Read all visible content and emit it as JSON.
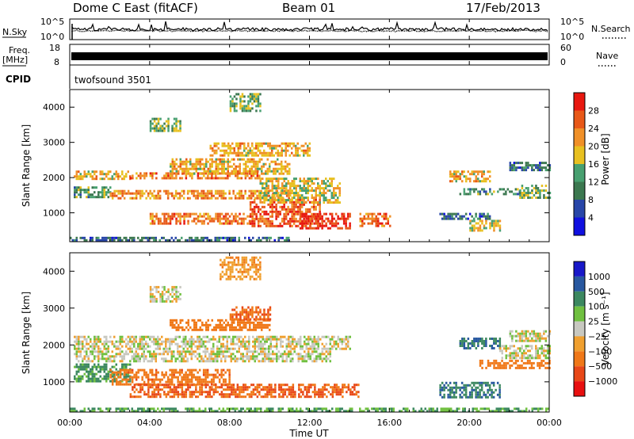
{
  "header": {
    "station": "Dome C East (fitACF)",
    "beam": "Beam 01",
    "date": "17/Feb/2013"
  },
  "top_panels": {
    "nsky_label": "N.Sky",
    "nsearch_label": "N.Search",
    "noise_ticks": [
      "10^5",
      "10^0"
    ],
    "freq_label": "Freq.",
    "freq_unit": "[MHz]",
    "freq_ticks": [
      "18",
      "8"
    ],
    "nave_label": "Nave",
    "nave_ticks": [
      "60",
      "0"
    ],
    "cpid_label": "CPID",
    "cpid_value": "twofsound 3501"
  },
  "x_axis": {
    "label": "Time UT",
    "ticks": [
      "00:00",
      "04:00",
      "08:00",
      "12:00",
      "16:00",
      "20:00",
      "00:00"
    ]
  },
  "colors": {
    "power": [
      "#1010e0",
      "#2846a8",
      "#3c7850",
      "#48a070",
      "#e8c020",
      "#f09028",
      "#e85818",
      "#e81810"
    ],
    "velocity": [
      "#1818c8",
      "#2858a0",
      "#3c8860",
      "#70c040",
      "#c8c8c0",
      "#f0a030",
      "#f07818",
      "#e84818",
      "#e81010"
    ]
  },
  "chart_data": [
    {
      "type": "heatmap",
      "title": "Power",
      "ylabel": "Slant Range [km]",
      "xlabel": "",
      "xlim": [
        0,
        24
      ],
      "ylim": [
        180,
        4500
      ],
      "y_ticks": [
        1000,
        2000,
        3000,
        4000
      ],
      "colorbar": {
        "label": "Power [dB]",
        "ticks": [
          4,
          8,
          12,
          16,
          20,
          24,
          28
        ],
        "range": [
          0,
          32
        ]
      },
      "bands": [
        {
          "t0": 0.2,
          "t1": 3.0,
          "r0": 1950,
          "r1": 2200,
          "value": 20
        },
        {
          "t0": 0.2,
          "t1": 2.0,
          "r0": 1450,
          "r1": 1750,
          "value": 12
        },
        {
          "t0": 2.0,
          "t1": 11.0,
          "r0": 1400,
          "r1": 1650,
          "value": 22
        },
        {
          "t0": 3.0,
          "t1": 9.5,
          "r0": 1950,
          "r1": 2150,
          "value": 24
        },
        {
          "t0": 5.0,
          "t1": 11.0,
          "r0": 2100,
          "r1": 2550,
          "value": 20
        },
        {
          "t0": 4.0,
          "t1": 9.0,
          "r0": 700,
          "r1": 1000,
          "value": 24
        },
        {
          "t0": 9.0,
          "t1": 12.5,
          "r0": 600,
          "r1": 1400,
          "value": 26
        },
        {
          "t0": 11.5,
          "t1": 14.0,
          "r0": 550,
          "r1": 1000,
          "value": 29
        },
        {
          "t0": 9.5,
          "t1": 13.5,
          "r0": 1300,
          "r1": 2000,
          "value": 18
        },
        {
          "t0": 7.0,
          "t1": 12.0,
          "r0": 2600,
          "r1": 3000,
          "value": 20
        },
        {
          "t0": 14.5,
          "t1": 16.0,
          "r0": 600,
          "r1": 1000,
          "value": 24
        },
        {
          "t0": 0.0,
          "t1": 11.0,
          "r0": 200,
          "r1": 320,
          "value": 8
        },
        {
          "t0": 18.5,
          "t1": 21.0,
          "r0": 800,
          "r1": 1000,
          "value": 8
        },
        {
          "t0": 20.0,
          "t1": 21.5,
          "r0": 500,
          "r1": 800,
          "value": 18
        },
        {
          "t0": 19.5,
          "t1": 22.5,
          "r0": 1500,
          "r1": 1700,
          "value": 12
        },
        {
          "t0": 19.0,
          "t1": 21.0,
          "r0": 1900,
          "r1": 2200,
          "value": 20
        },
        {
          "t0": 22.0,
          "t1": 24.0,
          "r0": 2200,
          "r1": 2450,
          "value": 8
        },
        {
          "t0": 22.5,
          "t1": 24.0,
          "r0": 1400,
          "r1": 1800,
          "value": 14
        },
        {
          "t0": 8.0,
          "t1": 9.5,
          "r0": 3900,
          "r1": 4400,
          "value": 14
        },
        {
          "t0": 4.0,
          "t1": 5.5,
          "r0": 3300,
          "r1": 3700,
          "value": 14
        }
      ]
    },
    {
      "type": "heatmap",
      "title": "Velocity",
      "ylabel": "Slant Range [km]",
      "xlabel": "Time UT",
      "xlim": [
        0,
        24
      ],
      "ylim": [
        180,
        4500
      ],
      "y_ticks": [
        1000,
        2000,
        3000,
        4000
      ],
      "colorbar": {
        "label": "Velocity [m s⁻¹]",
        "ticks": [
          "1000",
          "500",
          "100",
          "25",
          "−25",
          "−100",
          "−500",
          "−1000"
        ]
      },
      "bands": [
        {
          "t0": 0.2,
          "t1": 14.0,
          "r0": 1900,
          "r1": 2250,
          "value": 0
        },
        {
          "t0": 0.2,
          "t1": 13.0,
          "r0": 1550,
          "r1": 1850,
          "value": 0
        },
        {
          "t0": 0.2,
          "t1": 3.0,
          "r0": 1000,
          "r1": 1500,
          "value": 100
        },
        {
          "t0": 2.0,
          "t1": 8.0,
          "r0": 900,
          "r1": 1350,
          "value": -200
        },
        {
          "t0": 3.0,
          "t1": 14.5,
          "r0": 600,
          "r1": 950,
          "value": -300
        },
        {
          "t0": 0.0,
          "t1": 24.0,
          "r0": 200,
          "r1": 300,
          "value": 60
        },
        {
          "t0": 5.0,
          "t1": 10.0,
          "r0": 2400,
          "r1": 2700,
          "value": -150
        },
        {
          "t0": 8.0,
          "t1": 10.0,
          "r0": 2700,
          "r1": 3050,
          "value": -300
        },
        {
          "t0": 18.5,
          "t1": 21.5,
          "r0": 600,
          "r1": 1000,
          "value": 250
        },
        {
          "t0": 19.5,
          "t1": 21.5,
          "r0": 1900,
          "r1": 2200,
          "value": 250
        },
        {
          "t0": 20.5,
          "t1": 24.0,
          "r0": 1400,
          "r1": 1600,
          "value": -150
        },
        {
          "t0": 21.5,
          "t1": 24.0,
          "r0": 1650,
          "r1": 2000,
          "value": 0
        },
        {
          "t0": 22.0,
          "t1": 24.0,
          "r0": 2100,
          "r1": 2400,
          "value": 0
        },
        {
          "t0": 7.5,
          "t1": 9.5,
          "r0": 3800,
          "r1": 4400,
          "value": -50
        },
        {
          "t0": 4.0,
          "t1": 5.5,
          "r0": 3200,
          "r1": 3600,
          "value": 0
        }
      ]
    }
  ]
}
